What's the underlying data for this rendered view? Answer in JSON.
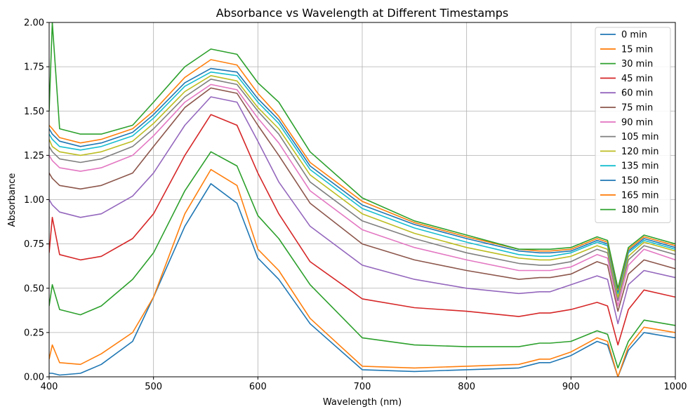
{
  "chart_data": {
    "type": "line",
    "title": "Absorbance vs Wavelength at Different Timestamps",
    "xlabel": "Wavelength (nm)",
    "ylabel": "Absorbance",
    "xlim": [
      400,
      1000
    ],
    "ylim": [
      0,
      2.0
    ],
    "grid": true,
    "legend_position": "top-right",
    "x_ticks": [
      400,
      500,
      600,
      700,
      800,
      900,
      1000
    ],
    "y_ticks": [
      0.0,
      0.25,
      0.5,
      0.75,
      1.0,
      1.25,
      1.5,
      1.75,
      2.0
    ],
    "y_tick_labels": [
      "0.00",
      "0.25",
      "0.50",
      "0.75",
      "1.00",
      "1.25",
      "1.50",
      "1.75",
      "2.00"
    ],
    "x": [
      400,
      403,
      410,
      430,
      450,
      480,
      500,
      530,
      555,
      580,
      600,
      620,
      650,
      700,
      750,
      800,
      850,
      870,
      880,
      900,
      925,
      935,
      945,
      955,
      970,
      1000
    ],
    "series": [
      {
        "name": "0 min",
        "color": "#1f77b4",
        "values": [
          0.02,
          0.02,
          0.01,
          0.02,
          0.07,
          0.2,
          0.45,
          0.85,
          1.09,
          0.98,
          0.67,
          0.55,
          0.3,
          0.04,
          0.03,
          0.04,
          0.05,
          0.08,
          0.08,
          0.12,
          0.2,
          0.18,
          0.0,
          0.15,
          0.25,
          0.22
        ]
      },
      {
        "name": "15 min",
        "color": "#ff7f0e",
        "values": [
          0.1,
          0.18,
          0.08,
          0.07,
          0.13,
          0.25,
          0.45,
          0.92,
          1.17,
          1.08,
          0.72,
          0.6,
          0.33,
          0.06,
          0.05,
          0.06,
          0.07,
          0.1,
          0.1,
          0.14,
          0.22,
          0.2,
          0.0,
          0.17,
          0.28,
          0.25
        ]
      },
      {
        "name": "30 min",
        "color": "#2ca02c",
        "values": [
          0.4,
          0.52,
          0.38,
          0.35,
          0.4,
          0.55,
          0.7,
          1.05,
          1.27,
          1.19,
          0.91,
          0.78,
          0.52,
          0.22,
          0.18,
          0.17,
          0.17,
          0.19,
          0.19,
          0.2,
          0.26,
          0.24,
          0.05,
          0.2,
          0.32,
          0.29
        ]
      },
      {
        "name": "45 min",
        "color": "#d62728",
        "values": [
          0.7,
          0.9,
          0.69,
          0.66,
          0.68,
          0.78,
          0.92,
          1.25,
          1.48,
          1.42,
          1.15,
          0.92,
          0.65,
          0.44,
          0.39,
          0.37,
          0.34,
          0.36,
          0.36,
          0.38,
          0.42,
          0.4,
          0.18,
          0.38,
          0.49,
          0.45
        ]
      },
      {
        "name": "60 min",
        "color": "#9467bd",
        "values": [
          1.0,
          0.97,
          0.93,
          0.9,
          0.92,
          1.02,
          1.15,
          1.42,
          1.58,
          1.55,
          1.33,
          1.1,
          0.85,
          0.63,
          0.55,
          0.5,
          0.47,
          0.48,
          0.48,
          0.52,
          0.57,
          0.55,
          0.3,
          0.52,
          0.6,
          0.56
        ]
      },
      {
        "name": "75 min",
        "color": "#8c564b",
        "values": [
          1.15,
          1.12,
          1.08,
          1.06,
          1.08,
          1.15,
          1.3,
          1.52,
          1.63,
          1.6,
          1.42,
          1.25,
          0.98,
          0.75,
          0.66,
          0.6,
          0.55,
          0.56,
          0.56,
          0.58,
          0.65,
          0.63,
          0.37,
          0.58,
          0.66,
          0.61
        ]
      },
      {
        "name": "90 min",
        "color": "#e377c2",
        "values": [
          1.25,
          1.22,
          1.18,
          1.16,
          1.18,
          1.25,
          1.36,
          1.55,
          1.65,
          1.62,
          1.46,
          1.32,
          1.05,
          0.83,
          0.73,
          0.66,
          0.6,
          0.6,
          0.6,
          0.62,
          0.69,
          0.67,
          0.4,
          0.63,
          0.72,
          0.66
        ]
      },
      {
        "name": "105 min",
        "color": "#7f7f7f",
        "values": [
          1.3,
          1.27,
          1.23,
          1.21,
          1.23,
          1.3,
          1.4,
          1.58,
          1.68,
          1.65,
          1.5,
          1.37,
          1.1,
          0.88,
          0.78,
          0.7,
          0.64,
          0.63,
          0.63,
          0.65,
          0.72,
          0.7,
          0.43,
          0.66,
          0.74,
          0.69
        ]
      },
      {
        "name": "120 min",
        "color": "#bcbd22",
        "values": [
          1.34,
          1.3,
          1.27,
          1.25,
          1.27,
          1.33,
          1.43,
          1.61,
          1.7,
          1.67,
          1.52,
          1.4,
          1.14,
          0.92,
          0.81,
          0.73,
          0.67,
          0.66,
          0.66,
          0.68,
          0.74,
          0.72,
          0.45,
          0.68,
          0.76,
          0.71
        ]
      },
      {
        "name": "135 min",
        "color": "#17becf",
        "values": [
          1.37,
          1.34,
          1.3,
          1.28,
          1.3,
          1.36,
          1.46,
          1.64,
          1.72,
          1.7,
          1.55,
          1.43,
          1.17,
          0.95,
          0.84,
          0.76,
          0.69,
          0.68,
          0.68,
          0.7,
          0.76,
          0.74,
          0.47,
          0.7,
          0.77,
          0.72
        ]
      },
      {
        "name": "150 min",
        "color": "#1f77b4",
        "values": [
          1.4,
          1.37,
          1.33,
          1.3,
          1.32,
          1.38,
          1.48,
          1.66,
          1.74,
          1.72,
          1.57,
          1.45,
          1.19,
          0.97,
          0.86,
          0.78,
          0.71,
          0.7,
          0.7,
          0.71,
          0.77,
          0.75,
          0.48,
          0.71,
          0.78,
          0.73
        ]
      },
      {
        "name": "165 min",
        "color": "#ff7f0e",
        "values": [
          1.42,
          1.4,
          1.35,
          1.32,
          1.34,
          1.4,
          1.5,
          1.69,
          1.79,
          1.76,
          1.6,
          1.47,
          1.21,
          0.99,
          0.87,
          0.79,
          0.72,
          0.71,
          0.71,
          0.72,
          0.78,
          0.76,
          0.49,
          0.72,
          0.79,
          0.74
        ]
      },
      {
        "name": "180 min",
        "color": "#2ca02c",
        "values": [
          1.5,
          2.0,
          1.4,
          1.37,
          1.37,
          1.42,
          1.55,
          1.75,
          1.85,
          1.82,
          1.66,
          1.55,
          1.27,
          1.01,
          0.88,
          0.8,
          0.72,
          0.72,
          0.72,
          0.73,
          0.79,
          0.77,
          0.5,
          0.73,
          0.8,
          0.75
        ]
      }
    ]
  }
}
